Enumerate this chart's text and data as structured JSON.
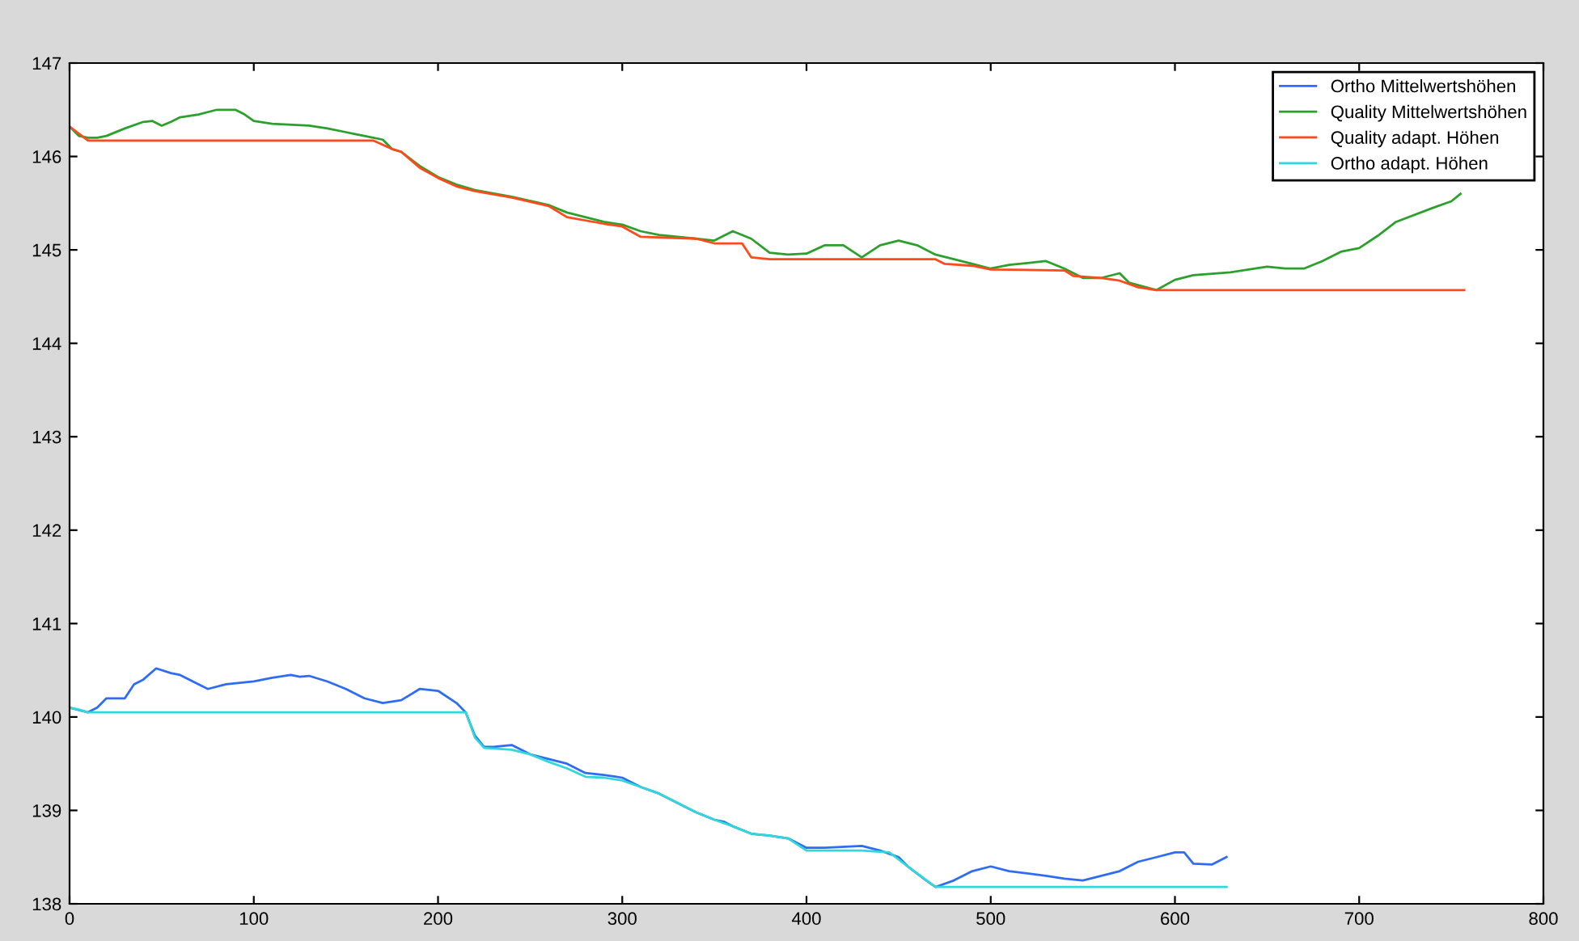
{
  "chart_data": {
    "type": "line",
    "xlim": [
      0,
      800
    ],
    "xticks": [
      0,
      100,
      200,
      300,
      400,
      500,
      600,
      700,
      800
    ],
    "ylim": [
      138,
      147
    ],
    "yticks": [
      138,
      139,
      140,
      141,
      142,
      143,
      144,
      145,
      146,
      147
    ],
    "grid": false,
    "legend": "top right",
    "line_style": "solid",
    "marker": "none",
    "series": [
      {
        "name": "Ortho Mittelwertshöhen",
        "color": "#2f6cf5",
        "x": [
          0,
          10,
          15,
          20,
          25,
          30,
          35,
          40,
          47,
          55,
          60,
          70,
          75,
          85,
          100,
          110,
          120,
          125,
          130,
          140,
          150,
          160,
          170,
          180,
          190,
          200,
          210,
          215,
          220,
          225,
          230,
          240,
          250,
          260,
          270,
          280,
          290,
          300,
          310,
          320,
          330,
          340,
          350,
          355,
          360,
          370,
          380,
          390,
          400,
          410,
          430,
          440,
          450,
          455,
          465,
          470,
          480,
          490,
          500,
          510,
          530,
          540,
          550,
          560,
          570,
          580,
          590,
          600,
          605,
          610,
          620,
          628
        ],
        "values": [
          140.1,
          140.05,
          140.1,
          140.2,
          140.2,
          140.2,
          140.35,
          140.4,
          140.52,
          140.47,
          140.45,
          140.35,
          140.3,
          140.35,
          140.38,
          140.42,
          140.45,
          140.43,
          140.44,
          140.38,
          140.3,
          140.2,
          140.15,
          140.18,
          140.3,
          140.28,
          140.15,
          140.05,
          139.8,
          139.68,
          139.68,
          139.7,
          139.6,
          139.55,
          139.5,
          139.4,
          139.38,
          139.35,
          139.25,
          139.18,
          139.08,
          138.98,
          138.9,
          138.88,
          138.83,
          138.75,
          138.73,
          138.7,
          138.6,
          138.6,
          138.62,
          138.57,
          138.5,
          138.4,
          138.25,
          138.18,
          138.25,
          138.35,
          138.4,
          138.35,
          138.3,
          138.27,
          138.25,
          138.3,
          138.35,
          138.45,
          138.5,
          138.55,
          138.55,
          138.43,
          138.42,
          138.5
        ]
      },
      {
        "name": "Quality Mittelwertshöhen",
        "color": "#2ca02c",
        "x": [
          0,
          5,
          10,
          15,
          20,
          30,
          40,
          45,
          50,
          55,
          60,
          70,
          80,
          90,
          95,
          100,
          110,
          130,
          140,
          150,
          155,
          160,
          170,
          175,
          180,
          190,
          200,
          210,
          220,
          240,
          260,
          270,
          280,
          290,
          300,
          310,
          320,
          330,
          340,
          350,
          360,
          370,
          380,
          390,
          400,
          410,
          420,
          430,
          440,
          450,
          460,
          470,
          480,
          490,
          500,
          510,
          520,
          530,
          540,
          550,
          560,
          570,
          575,
          590,
          600,
          610,
          630,
          650,
          660,
          670,
          680,
          690,
          700,
          710,
          720,
          740,
          750,
          755
        ],
        "values": [
          146.32,
          146.22,
          146.2,
          146.2,
          146.22,
          146.3,
          146.37,
          146.38,
          146.33,
          146.37,
          146.42,
          146.45,
          146.5,
          146.5,
          146.45,
          146.38,
          146.35,
          146.33,
          146.3,
          146.26,
          146.24,
          146.22,
          146.18,
          146.08,
          146.05,
          145.9,
          145.78,
          145.7,
          145.64,
          145.57,
          145.48,
          145.4,
          145.35,
          145.3,
          145.27,
          145.2,
          145.16,
          145.14,
          145.12,
          145.1,
          145.2,
          145.12,
          144.97,
          144.95,
          144.96,
          145.05,
          145.05,
          144.92,
          145.05,
          145.1,
          145.05,
          144.95,
          144.9,
          144.85,
          144.8,
          144.84,
          144.86,
          144.88,
          144.8,
          144.7,
          144.7,
          144.75,
          144.65,
          144.57,
          144.68,
          144.73,
          144.76,
          144.82,
          144.8,
          144.8,
          144.88,
          144.98,
          145.02,
          145.15,
          145.3,
          145.45,
          145.52,
          145.6
        ]
      },
      {
        "name": "Quality adapt. Höhen",
        "color": "#ff4a1c",
        "x": [
          0,
          10,
          165,
          175,
          180,
          190,
          200,
          210,
          220,
          240,
          260,
          270,
          290,
          300,
          310,
          340,
          350,
          365,
          370,
          380,
          470,
          475,
          490,
          500,
          540,
          545,
          560,
          570,
          580,
          590,
          757
        ],
        "values": [
          146.32,
          146.17,
          146.17,
          146.08,
          146.05,
          145.88,
          145.77,
          145.68,
          145.63,
          145.56,
          145.47,
          145.35,
          145.28,
          145.25,
          145.14,
          145.12,
          145.07,
          145.07,
          144.92,
          144.9,
          144.9,
          144.85,
          144.83,
          144.79,
          144.78,
          144.72,
          144.7,
          144.67,
          144.6,
          144.57,
          144.57
        ]
      },
      {
        "name": "Ortho adapt. Höhen",
        "color": "#30d8dc",
        "x": [
          0,
          5,
          10,
          215,
          220,
          225,
          240,
          250,
          260,
          270,
          280,
          290,
          300,
          310,
          320,
          330,
          340,
          350,
          360,
          370,
          380,
          390,
          400,
          430,
          445,
          455,
          470,
          628
        ],
        "values": [
          140.1,
          140.08,
          140.05,
          140.05,
          139.78,
          139.67,
          139.65,
          139.6,
          139.52,
          139.45,
          139.36,
          139.35,
          139.32,
          139.25,
          139.18,
          139.08,
          138.98,
          138.9,
          138.83,
          138.75,
          138.73,
          138.7,
          138.57,
          138.57,
          138.55,
          138.4,
          138.18,
          138.18
        ]
      }
    ]
  }
}
